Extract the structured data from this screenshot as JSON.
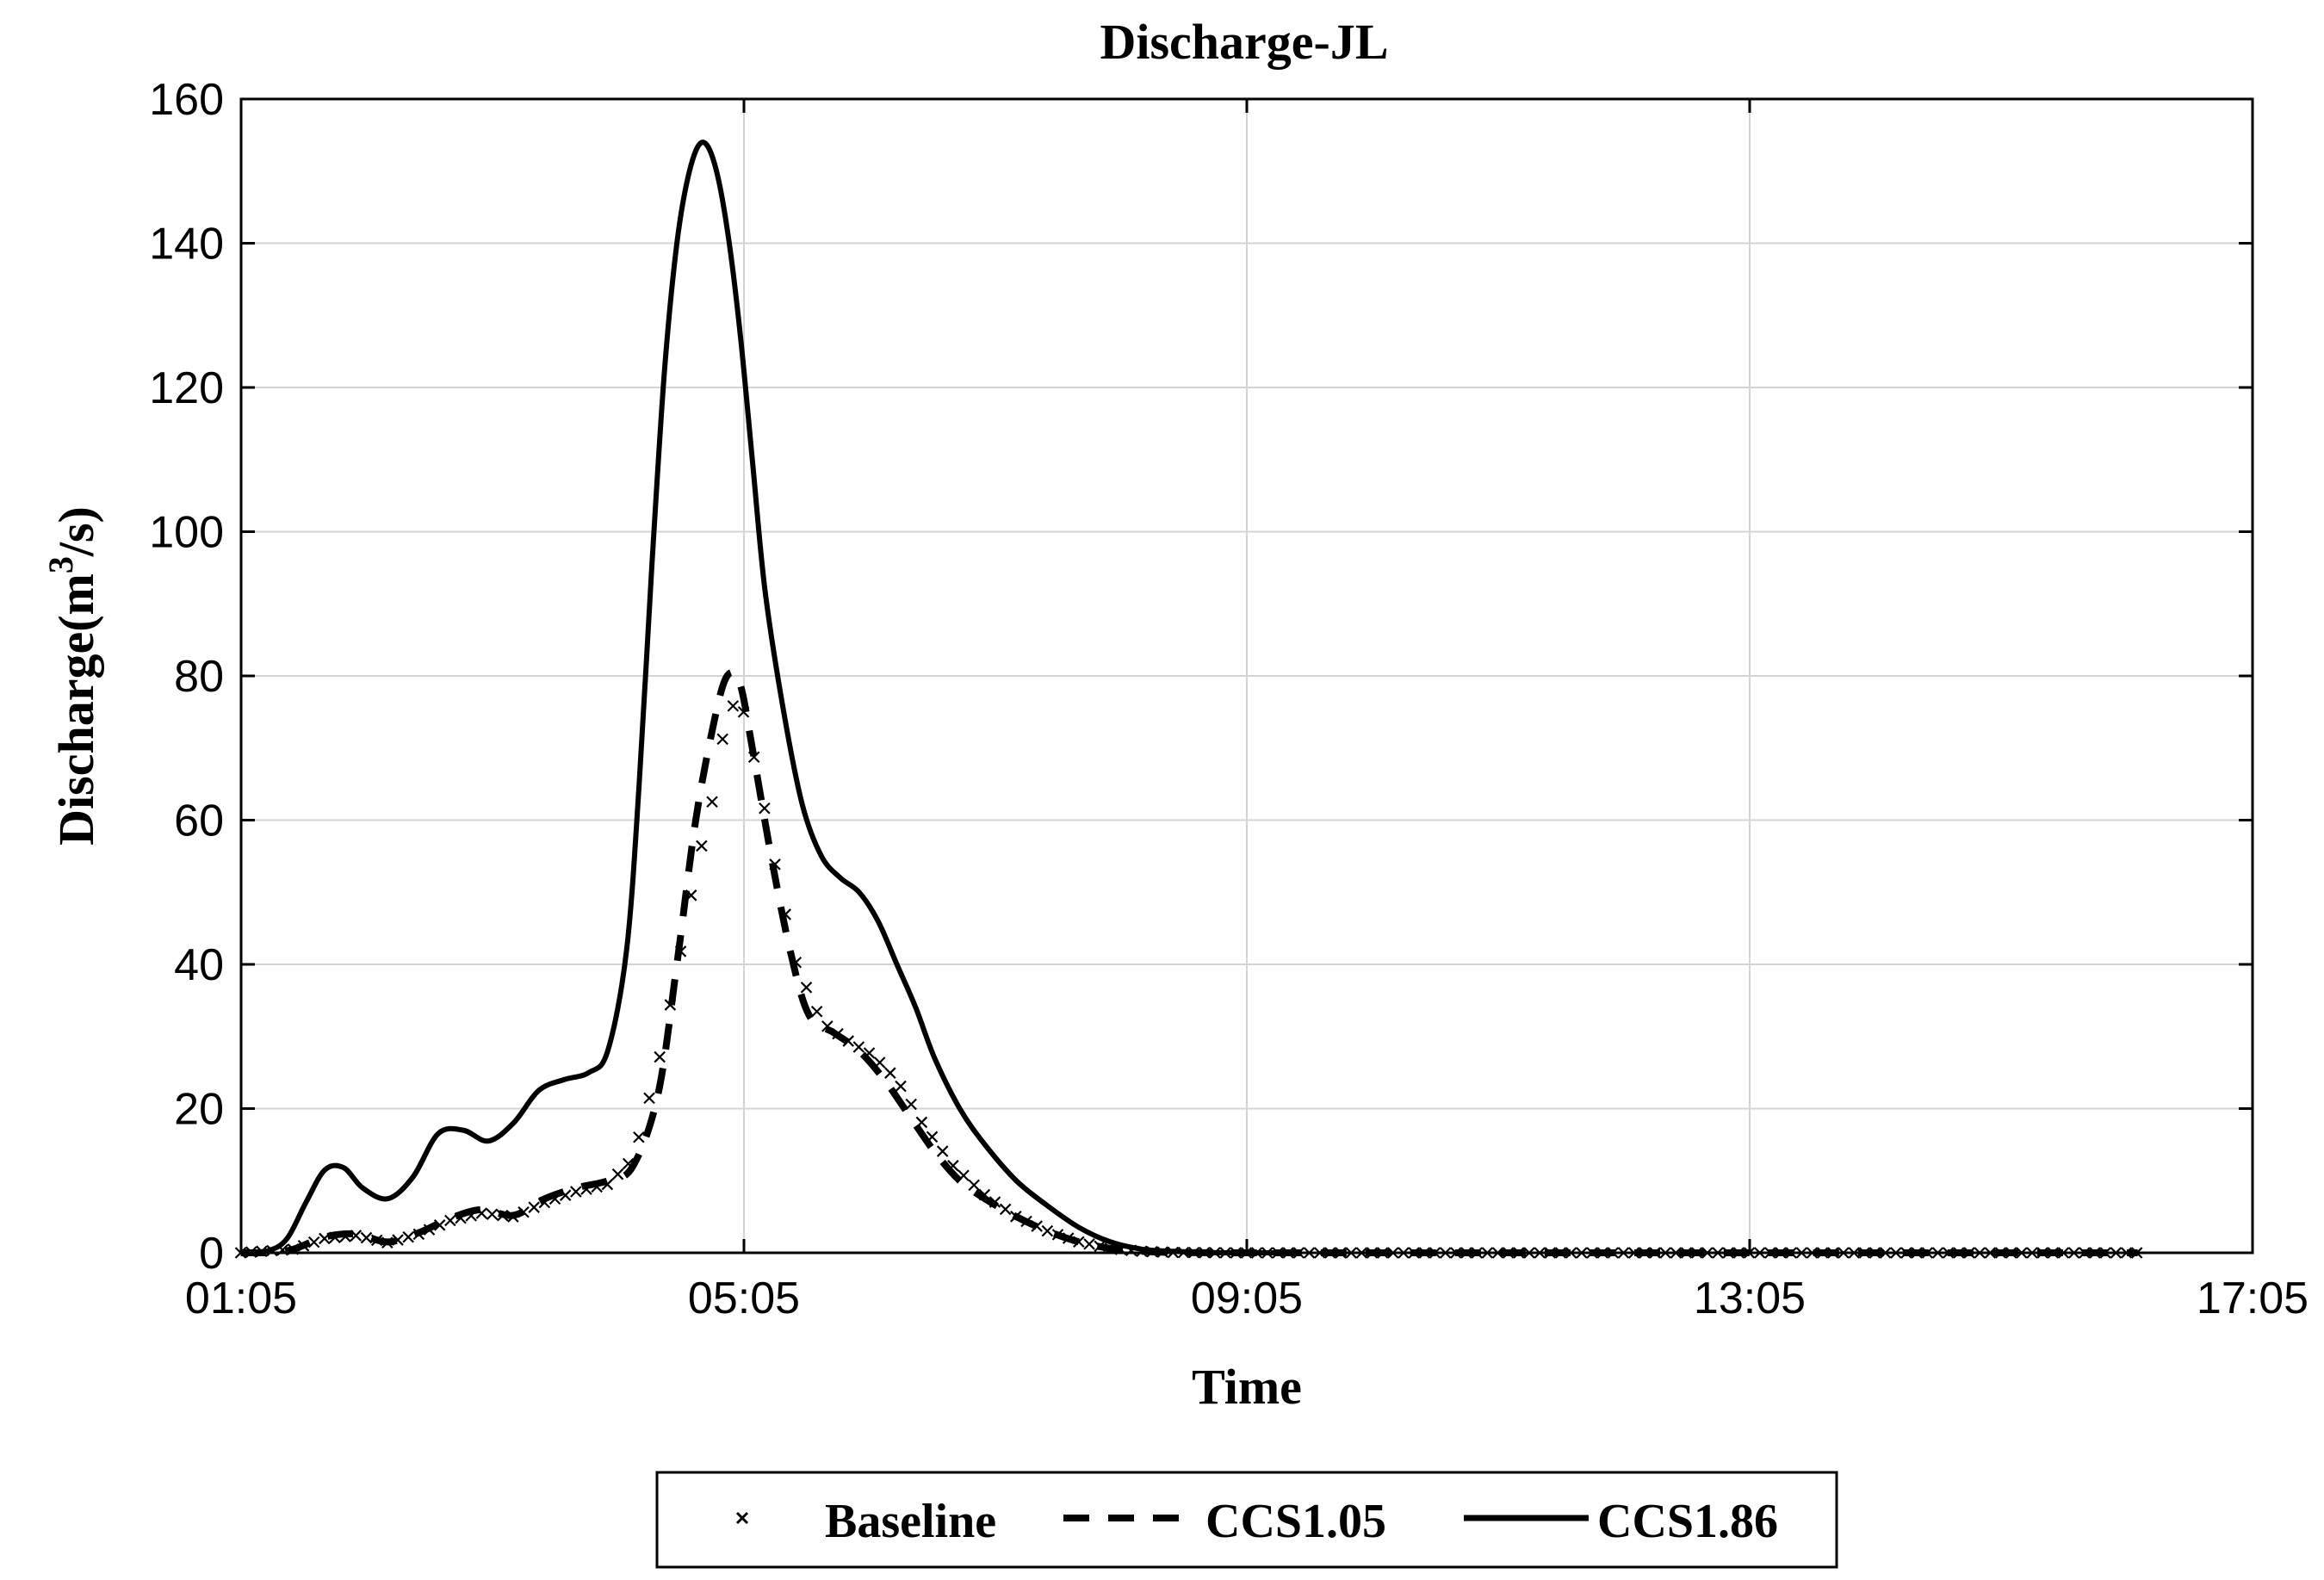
{
  "chart_data": {
    "type": "line",
    "title": "Discharge-JL",
    "xlabel": "Time",
    "ylabel_main": "Discharge(m",
    "ylabel_sup": "3",
    "ylabel_end": "/s)",
    "x_ticks": [
      "01:05",
      "05:05",
      "09:05",
      "13:05",
      "17:05"
    ],
    "x_tick_hours": [
      1.0833,
      5.0833,
      9.0833,
      13.0833,
      17.0833
    ],
    "xlim_hours": [
      1.0833,
      17.0833
    ],
    "y_ticks": [
      0,
      20,
      40,
      60,
      80,
      100,
      120,
      140,
      160
    ],
    "ylim": [
      0,
      160
    ],
    "grid": true,
    "legend_position": "bottom-center",
    "series": [
      {
        "name": "Baseline",
        "style": "marker-x",
        "color": "#000000",
        "x": [
          1.08,
          1.5,
          1.75,
          2.0,
          2.25,
          2.5,
          2.75,
          3.0,
          3.25,
          3.5,
          3.75,
          4.0,
          4.2,
          4.4,
          4.55,
          4.7,
          4.85,
          4.92,
          5.0,
          5.08,
          5.2,
          5.35,
          5.5,
          5.7,
          5.9,
          6.1,
          6.3,
          6.5,
          6.75,
          7.0,
          7.25,
          7.5,
          7.75,
          8.0,
          8.25,
          8.5,
          9.0,
          10.0,
          11.0,
          12.0,
          13.0,
          14.0,
          15.0,
          16.0,
          16.17
        ],
        "y": [
          0,
          0.5,
          2.0,
          2.4,
          1.4,
          2.6,
          4.5,
          5.5,
          5.0,
          7.0,
          8.5,
          9.5,
          13,
          26,
          39,
          53,
          64,
          72,
          76,
          75,
          66,
          52,
          40,
          32,
          29.5,
          27.5,
          24,
          18,
          12,
          8,
          5,
          3,
          1.5,
          0.6,
          0.2,
          0.05,
          0,
          0,
          0,
          0,
          0,
          0,
          0,
          0,
          0
        ]
      },
      {
        "name": "CCS1.05",
        "style": "dashed",
        "color": "#000000",
        "x": [
          1.08,
          1.3,
          1.5,
          1.75,
          2.0,
          2.25,
          2.5,
          2.75,
          3.0,
          3.25,
          3.5,
          3.75,
          4.0,
          4.2,
          4.4,
          4.55,
          4.7,
          4.85,
          4.95,
          5.05,
          5.15,
          5.3,
          5.45,
          5.6,
          5.8,
          6.0,
          6.2,
          6.4,
          6.6,
          6.8,
          7.0,
          7.25,
          7.5,
          7.75,
          8.0,
          8.25,
          8.5,
          9.0,
          10.0,
          12.0,
          14.0,
          16.17
        ],
        "y": [
          0,
          0,
          0.5,
          2.2,
          2.6,
          1.5,
          2.8,
          4.8,
          6.0,
          5.2,
          7.5,
          9.0,
          10,
          12,
          22,
          40,
          60,
          74,
          80,
          79,
          70,
          55,
          42,
          33,
          30.5,
          28,
          24,
          19,
          14,
          10,
          7.5,
          5,
          3,
          1.5,
          0.6,
          0.2,
          0.05,
          0,
          0,
          0,
          0,
          0
        ]
      },
      {
        "name": "CCS1.86",
        "style": "solid",
        "color": "#000000",
        "x": [
          1.08,
          1.3,
          1.45,
          1.6,
          1.75,
          1.9,
          2.05,
          2.25,
          2.45,
          2.65,
          2.85,
          3.05,
          3.25,
          3.45,
          3.65,
          3.85,
          4.0,
          4.15,
          4.25,
          4.35,
          4.45,
          4.55,
          4.65,
          4.75,
          4.85,
          4.95,
          5.05,
          5.15,
          5.25,
          5.4,
          5.55,
          5.7,
          5.85,
          6.0,
          6.15,
          6.3,
          6.45,
          6.6,
          6.8,
          7.0,
          7.25,
          7.5,
          7.75,
          8.0,
          8.25,
          8.5,
          8.75,
          9.0,
          9.5
        ],
        "y": [
          0,
          0.3,
          2.0,
          7.0,
          11.5,
          11.8,
          9.0,
          7.5,
          10.5,
          16.5,
          17.0,
          15.5,
          18.0,
          22.5,
          24.0,
          25.0,
          28.0,
          42.0,
          65.0,
          95.0,
          122.0,
          140.0,
          150.0,
          154.0,
          151.0,
          142.0,
          128.0,
          110.0,
          92.0,
          75.0,
          62.0,
          55.0,
          52.0,
          50.0,
          46.0,
          40.0,
          34.0,
          27.0,
          20.0,
          15.0,
          10.0,
          6.5,
          3.5,
          1.5,
          0.5,
          0.2,
          0.05,
          0,
          0
        ]
      }
    ]
  }
}
